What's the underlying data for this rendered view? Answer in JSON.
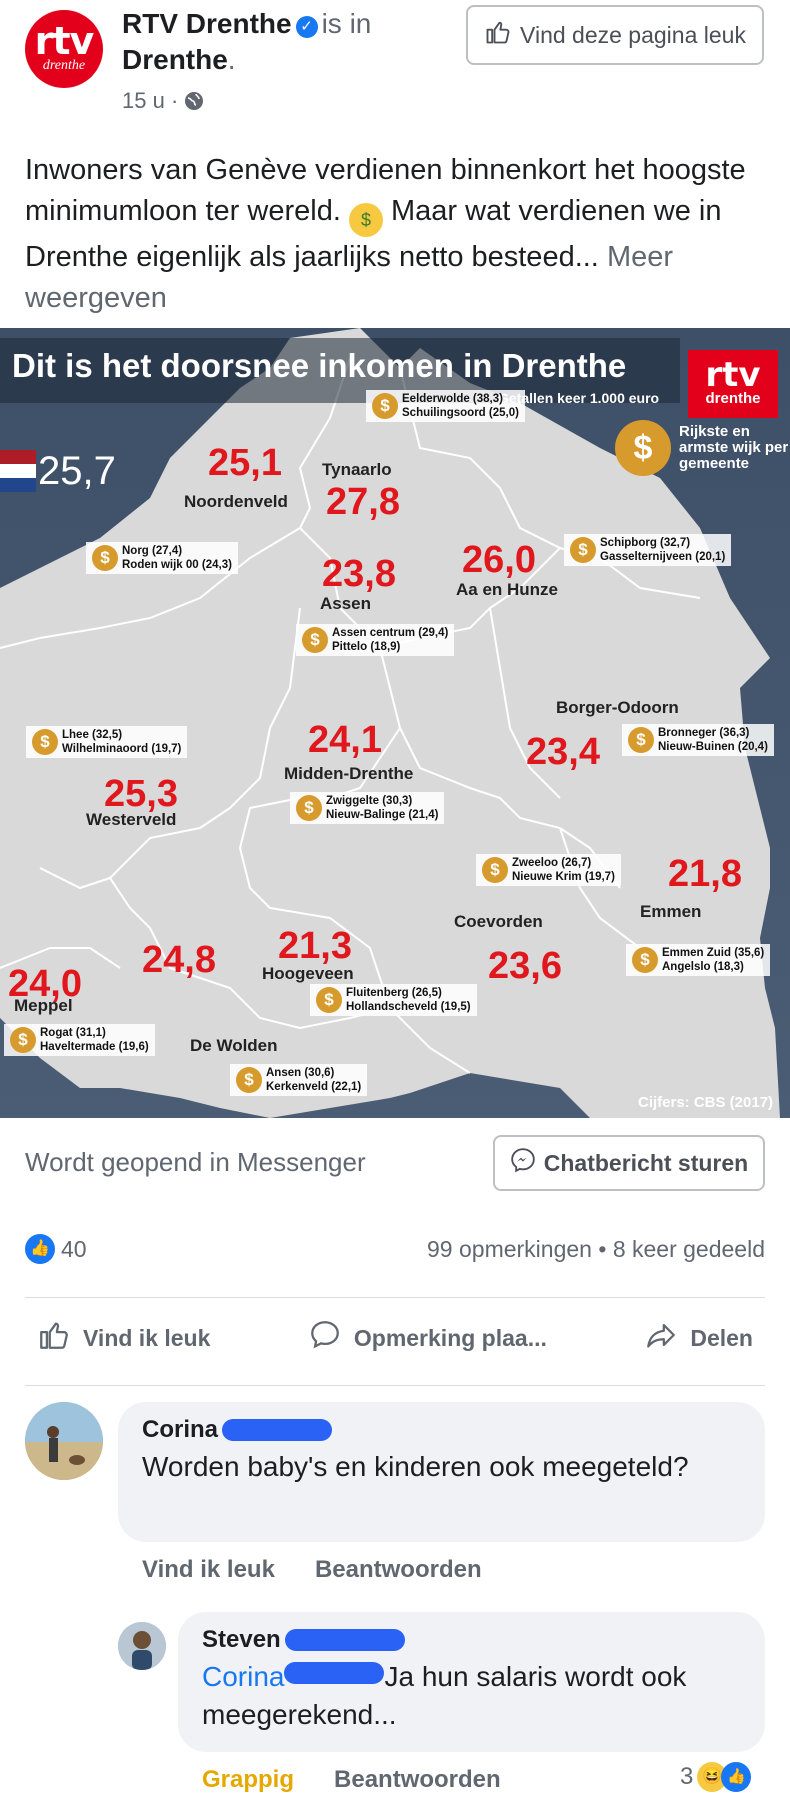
{
  "post": {
    "page_name": "RTV Drenthe",
    "is_in": "is in",
    "location": "Drenthe",
    "time": "15 u",
    "like_page_label": "Vind deze pagina leuk",
    "logo_big": "rtv",
    "logo_small": "drenthe",
    "text_before_emoji": "Inwoners van Genève verdienen binnenkort het hoogste minimumloon ter wereld.",
    "text_after_emoji": "Maar wat verdienen we in Drenthe eigenlijk als jaarlijks netto besteed...",
    "more_label": "Meer weergeven"
  },
  "infographic": {
    "title": "Dit is het doorsnee inkomen in Drenthe",
    "subtitle": "Getallen keer 1.000 euro",
    "brand_big": "rtv",
    "brand_small": "drenthe",
    "netherlands_value": "25,7",
    "legend": "Rijkste en armste wijk per gemeente",
    "credit": "Cijfers: CBS (2017)",
    "municipalities": [
      {
        "name": "Noordenveld",
        "value": "25,1"
      },
      {
        "name": "Tynaarlo",
        "value": "27,8"
      },
      {
        "name": "Assen",
        "value": "23,8"
      },
      {
        "name": "Aa en Hunze",
        "value": "26,0"
      },
      {
        "name": "Borger-Odoorn",
        "value": "23,4"
      },
      {
        "name": "Midden-Drenthe",
        "value": "24,1"
      },
      {
        "name": "Westerveld",
        "value": "25,3"
      },
      {
        "name": "Emmen",
        "value": "21,8"
      },
      {
        "name": "Coevorden",
        "value": "23,6"
      },
      {
        "name": "Hoogeveen",
        "value": "21,3"
      },
      {
        "name": "De Wolden",
        "value": "24,8"
      },
      {
        "name": "Meppel",
        "value": "24,0"
      }
    ],
    "neighbourhoods": [
      {
        "rich": "Eelderwolde (38,3)",
        "poor": "Schuilingsoord (25,0)"
      },
      {
        "rich": "Norg (27,4)",
        "poor": "Roden wijk 00 (24,3)"
      },
      {
        "rich": "Schipborg (32,7)",
        "poor": "Gasselternijveen (20,1)"
      },
      {
        "rich": "Assen centrum (29,4)",
        "poor": "Pittelo (18,9)"
      },
      {
        "rich": "Lhee (32,5)",
        "poor": "Wilhelminaoord (19,7)"
      },
      {
        "rich": "Bronneger (36,3)",
        "poor": "Nieuw-Buinen (20,4)"
      },
      {
        "rich": "Zwiggelte (30,3)",
        "poor": "Nieuw-Balinge (21,4)"
      },
      {
        "rich": "Zweeloo (26,7)",
        "poor": "Nieuwe Krim (19,7)"
      },
      {
        "rich": "Emmen Zuid (35,6)",
        "poor": "Angelslo (18,3)"
      },
      {
        "rich": "Fluitenberg (26,5)",
        "poor": "Hollandscheveld (19,5)"
      },
      {
        "rich": "Rogat (31,1)",
        "poor": "Haveltermade (19,6)"
      },
      {
        "rich": "Ansen (30,6)",
        "poor": "Kerkenveld (22,1)"
      }
    ]
  },
  "messenger": {
    "label": "Wordt geopend in Messenger",
    "button": "Chatbericht sturen"
  },
  "stats": {
    "likes": "40",
    "comments": "99 opmerkingen",
    "shares": "8 keer gedeeld",
    "separator": "•"
  },
  "actions": {
    "like": "Vind ik leuk",
    "comment": "Opmerking plaa...",
    "share": "Delen"
  },
  "comments": [
    {
      "name": "Corina",
      "text": "Worden baby's en kinderen ook meegeteld?",
      "like": "Vind ik leuk",
      "reply": "Beantwoorden"
    },
    {
      "name": "Steven",
      "mention": "Corina",
      "text": "Ja hun salaris wordt ook meegerekend...",
      "reaction_label": "Grappig",
      "reply": "Beantwoorden",
      "reaction_count": "3"
    }
  ],
  "colors": {
    "brand_red": "#e2001a",
    "facebook_blue": "#1877f2",
    "value_red": "#e1171e"
  }
}
